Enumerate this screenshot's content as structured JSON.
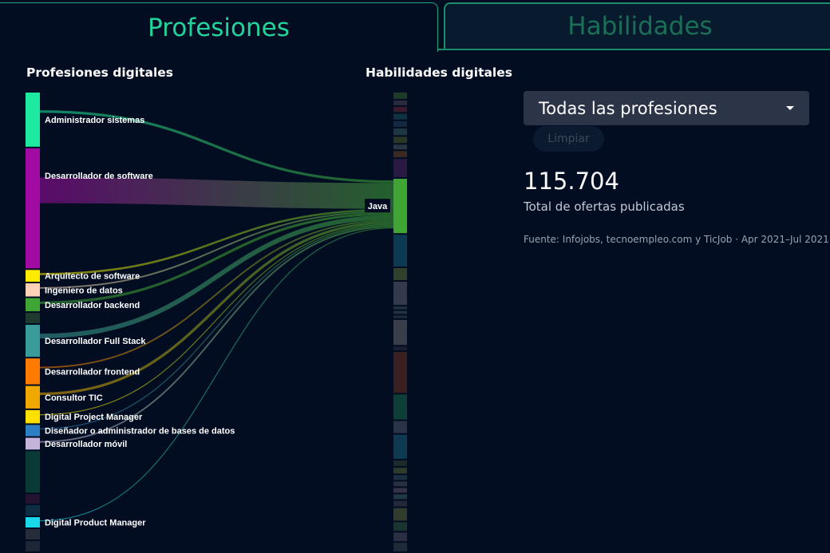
{
  "tabs": {
    "professions": "Profesiones",
    "skills": "Habilidades"
  },
  "headings": {
    "left": "Profesiones digitales",
    "right": "Habilidades digitales"
  },
  "filter": {
    "selected": "Todas las profesiones",
    "clear_label": "Limpiar"
  },
  "stats": {
    "total": "115.704",
    "total_label": "Total de ofertas publicadas",
    "source": "Fuente: Infojobs, tecnoempleo.com y TicJob · Apr 2021–Jul 2021"
  },
  "colors": {
    "background": "#020d22",
    "accent": "#22d39b",
    "java": "#3fa535"
  },
  "chart_data": {
    "type": "sankey",
    "highlighted_target": "Java",
    "professions": [
      {
        "name": "Administrador sistemas",
        "color": "#1de9a0",
        "share": 0.115
      },
      {
        "name": "Desarrollador de software",
        "color": "#a10aa3",
        "share": 0.255
      },
      {
        "name": "Arquitecto de software",
        "color": "#ffeb00",
        "share": 0.025
      },
      {
        "name": "Ingeniero de datos",
        "color": "#ffd2b8",
        "share": 0.028
      },
      {
        "name": "Desarrollador backend",
        "color": "#3fa535",
        "share": 0.028
      },
      {
        "name": "",
        "color": "#1e3a2e",
        "share": 0.022
      },
      {
        "name": "Desarrollador Full Stack",
        "color": "#3a9b9b",
        "share": 0.068
      },
      {
        "name": "Desarrollador frontend",
        "color": "#ff7a00",
        "share": 0.055
      },
      {
        "name": "Consultor TIC",
        "color": "#f0a800",
        "share": 0.048
      },
      {
        "name": "Digital Project Manager",
        "color": "#ffe000",
        "share": 0.028
      },
      {
        "name": "Diseñador o administrador de bases de datos",
        "color": "#2c7fc4",
        "share": 0.024
      },
      {
        "name": "Desarrollador móvil",
        "color": "#c5b4da",
        "share": 0.025
      },
      {
        "name": "",
        "color": "#0a3a36",
        "share": 0.088
      },
      {
        "name": "",
        "color": "#231232",
        "share": 0.02
      },
      {
        "name": "",
        "color": "#0e2e44",
        "share": 0.022
      },
      {
        "name": "Digital Product Manager",
        "color": "#18d8ea",
        "share": 0.022
      },
      {
        "name": "",
        "color": "#262c3a",
        "share": 0.022
      },
      {
        "name": "",
        "color": "#1e2636",
        "share": 0.022
      }
    ],
    "skills": [
      {
        "name": "",
        "color": "#1d3b29",
        "share": 0.013
      },
      {
        "name": "",
        "color": "#2a2a3e",
        "share": 0.01
      },
      {
        "name": "",
        "color": "#3a1b2e",
        "share": 0.011
      },
      {
        "name": "",
        "color": "#0f3242",
        "share": 0.012
      },
      {
        "name": "",
        "color": "#142842",
        "share": 0.012
      },
      {
        "name": "",
        "color": "#1c3642",
        "share": 0.014
      },
      {
        "name": "",
        "color": "#2c3624",
        "share": 0.013
      },
      {
        "name": "",
        "color": "#2a3442",
        "share": 0.01
      },
      {
        "name": "",
        "color": "#3a2a22",
        "share": 0.013
      },
      {
        "name": "",
        "color": "#281a42",
        "share": 0.038
      },
      {
        "name": "Java",
        "color": "#3fa535",
        "share": 0.113
      },
      {
        "name": "",
        "color": "#0c3a52",
        "share": 0.066
      },
      {
        "name": "",
        "color": "#30402a",
        "share": 0.025
      },
      {
        "name": "",
        "color": "#343a4c",
        "share": 0.048
      },
      {
        "name": "",
        "color": "#1e3040",
        "share": 0.006
      },
      {
        "name": "",
        "color": "#223444",
        "share": 0.006
      },
      {
        "name": "",
        "color": "#1a2a3c",
        "share": 0.006
      },
      {
        "name": "",
        "color": "#3a3e4a",
        "share": 0.052
      },
      {
        "name": "",
        "color": "#1a1e30",
        "share": 0.008
      },
      {
        "name": "",
        "color": "#3a2020",
        "share": 0.085
      },
      {
        "name": "",
        "color": "#0d3e38",
        "share": 0.052
      },
      {
        "name": "",
        "color": "#2a3348",
        "share": 0.025
      },
      {
        "name": "",
        "color": "#0e3a52",
        "share": 0.05
      },
      {
        "name": "",
        "color": "#1c2a28",
        "share": 0.012
      },
      {
        "name": "",
        "color": "#2e3a2a",
        "share": 0.012
      },
      {
        "name": "",
        "color": "#1a3040",
        "share": 0.01
      },
      {
        "name": "",
        "color": "#28303e",
        "share": 0.01
      },
      {
        "name": "",
        "color": "#343046",
        "share": 0.01
      },
      {
        "name": "",
        "color": "#1e3a40",
        "share": 0.01
      },
      {
        "name": "",
        "color": "#222838",
        "share": 0.012
      },
      {
        "name": "",
        "color": "#333b2c",
        "share": 0.026
      },
      {
        "name": "",
        "color": "#1a3430",
        "share": 0.018
      },
      {
        "name": "",
        "color": "#2a2e40",
        "share": 0.018
      },
      {
        "name": "",
        "color": "#1e2a36",
        "share": 0.018
      }
    ],
    "links": [
      {
        "source": "Administrador sistemas",
        "target": "Java",
        "weight": 0.05
      },
      {
        "source": "Desarrollador de software",
        "target": "Java",
        "weight": 0.5
      },
      {
        "source": "Arquitecto de software",
        "target": "Java",
        "weight": 0.04
      },
      {
        "source": "Ingeniero de datos",
        "target": "Java",
        "weight": 0.03
      },
      {
        "source": "Desarrollador backend",
        "target": "Java",
        "weight": 0.05
      },
      {
        "source": "Desarrollador Full Stack",
        "target": "Java",
        "weight": 0.09
      },
      {
        "source": "Desarrollador frontend",
        "target": "Java",
        "weight": 0.03
      },
      {
        "source": "Consultor TIC",
        "target": "Java",
        "weight": 0.05
      },
      {
        "source": "Digital Project Manager",
        "target": "Java",
        "weight": 0.02
      },
      {
        "source": "Diseñador o administrador de bases de datos",
        "target": "Java",
        "weight": 0.02
      },
      {
        "source": "Desarrollador móvil",
        "target": "Java",
        "weight": 0.03
      },
      {
        "source": "Digital Product Manager",
        "target": "Java",
        "weight": 0.015
      }
    ]
  }
}
